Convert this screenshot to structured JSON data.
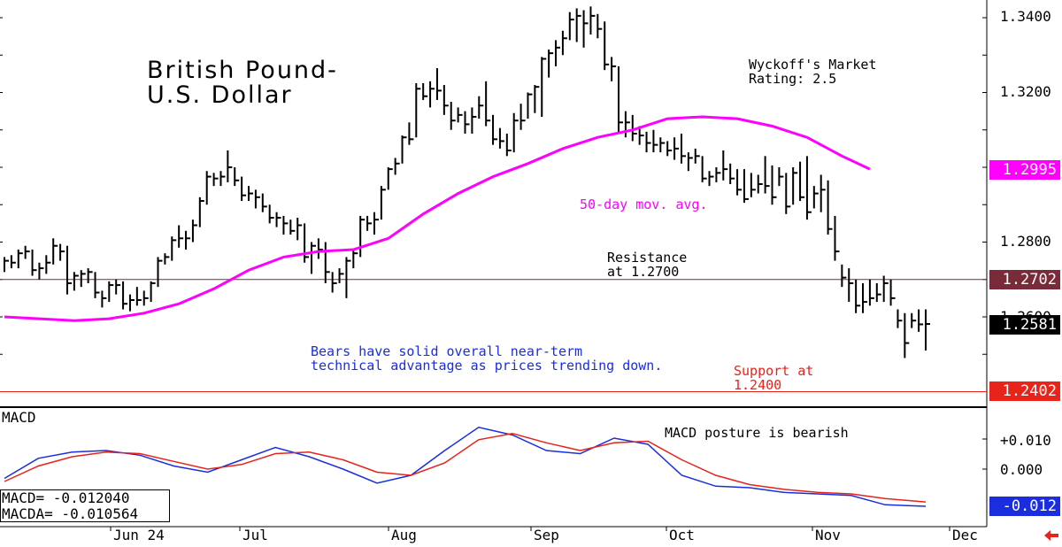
{
  "title": "British Pound-\nU.S. Dollar",
  "rating_text": "Wyckoff's Market\nRating: 2.5",
  "ma_label": "50-day mov. avg.",
  "resistance_label": "Resistance\nat 1.2700",
  "bears_text": "Bears have solid overall near-term\ntechnical advantage as prices trending down.",
  "support_label": "Support at\n1.2400",
  "macd_title": "MACD",
  "macd_posture": "MACD posture is bearish",
  "macd_readout": {
    "macd": "MACD=   -0.012040",
    "macda": "MACDA=  -0.010564"
  },
  "price_ticks": [
    "1.3400",
    "1.3200",
    "1.2800",
    "1.2600"
  ],
  "price_tags": {
    "ma": "1.2995",
    "resistance": "1.2702",
    "last": "1.2581",
    "support": "1.2402"
  },
  "macd_ticks": [
    "+0.010",
    "0.000"
  ],
  "macd_tags": {
    "macd": "-0.012"
  },
  "months": [
    "Jun 24",
    "Jul",
    "Aug",
    "Sep",
    "Oct",
    "Nov",
    "Dec"
  ],
  "colors": {
    "ma": "#ff00ff",
    "resistance": "#7a2b3a",
    "support": "#e8231a",
    "macd": "#1a2ee0",
    "macda": "#e8231a",
    "text_blue": "#1a2ee0",
    "text_red": "#e8231a",
    "text_magenta": "#ff00ff",
    "last_tag": "#000000",
    "ma_tag": "#ff00ff",
    "resistance_tag": "#7a2b3a"
  },
  "chart_data": [
    {
      "type": "bar",
      "subtype": "ohlc",
      "ylim": [
        1.2365,
        1.345
      ],
      "levels": {
        "resistance": 1.27,
        "support": 1.24
      },
      "series": [
        {
          "name": "50-day mov. avg.",
          "dates": [
            "2024-06-03",
            "2024-06-10",
            "2024-06-17",
            "2024-06-24",
            "2024-07-01",
            "2024-07-08",
            "2024-07-15",
            "2024-07-22",
            "2024-07-29",
            "2024-08-05",
            "2024-08-12",
            "2024-08-19",
            "2024-08-26",
            "2024-09-02",
            "2024-09-09",
            "2024-09-16",
            "2024-09-23",
            "2024-09-30",
            "2024-10-07",
            "2024-10-14",
            "2024-10-21",
            "2024-10-28",
            "2024-11-04",
            "2024-11-11",
            "2024-11-18",
            "2024-11-22"
          ],
          "values": [
            1.26,
            1.2595,
            1.259,
            1.2595,
            1.261,
            1.2635,
            1.2675,
            1.2725,
            1.276,
            1.2775,
            1.278,
            1.281,
            1.2875,
            1.293,
            1.2975,
            1.301,
            1.305,
            1.308,
            1.31,
            1.313,
            1.3135,
            1.313,
            1.311,
            1.308,
            1.303,
            1.2995
          ]
        }
      ],
      "ohlc": [
        [
          "2024-06-03",
          1.276,
          1.272,
          1.275
        ],
        [
          "2024-06-04",
          1.2765,
          1.273,
          1.2745
        ],
        [
          "2024-06-05",
          1.278,
          1.273,
          1.277
        ],
        [
          "2024-06-06",
          1.279,
          1.2755,
          1.2775
        ],
        [
          "2024-06-07",
          1.278,
          1.271,
          1.2725
        ],
        [
          "2024-06-10",
          1.2745,
          1.27,
          1.273
        ],
        [
          "2024-06-11",
          1.2765,
          1.2715,
          1.2745
        ],
        [
          "2024-06-12",
          1.281,
          1.274,
          1.279
        ],
        [
          "2024-06-13",
          1.2795,
          1.275,
          1.2775
        ],
        [
          "2024-06-14",
          1.279,
          1.266,
          1.269
        ],
        [
          "2024-06-17",
          1.272,
          1.267,
          1.271
        ],
        [
          "2024-06-18",
          1.2725,
          1.268,
          1.2715
        ],
        [
          "2024-06-19",
          1.273,
          1.269,
          1.272
        ],
        [
          "2024-06-20",
          1.272,
          1.265,
          1.2665
        ],
        [
          "2024-06-21",
          1.267,
          1.2625,
          1.265
        ],
        [
          "2024-06-24",
          1.2695,
          1.264,
          1.2685
        ],
        [
          "2024-06-25",
          1.27,
          1.266,
          1.2685
        ],
        [
          "2024-06-26",
          1.2695,
          1.262,
          1.2635
        ],
        [
          "2024-06-27",
          1.266,
          1.2615,
          1.2645
        ],
        [
          "2024-06-28",
          1.268,
          1.263,
          1.2645
        ],
        [
          "2024-07-01",
          1.267,
          1.263,
          1.265
        ],
        [
          "2024-07-02",
          1.2695,
          1.264,
          1.269
        ],
        [
          "2024-07-03",
          1.276,
          1.268,
          1.275
        ],
        [
          "2024-07-04",
          1.277,
          1.274,
          1.276
        ],
        [
          "2024-07-05",
          1.2815,
          1.275,
          1.2805
        ],
        [
          "2024-07-08",
          1.2845,
          1.2785,
          1.281
        ],
        [
          "2024-07-09",
          1.283,
          1.278,
          1.281
        ],
        [
          "2024-07-10",
          1.286,
          1.28,
          1.2845
        ],
        [
          "2024-07-11",
          1.292,
          1.284,
          1.291
        ],
        [
          "2024-07-12",
          1.299,
          1.29,
          1.2975
        ],
        [
          "2024-07-15",
          1.2985,
          1.295,
          1.297
        ],
        [
          "2024-07-16",
          1.299,
          1.295,
          1.2975
        ],
        [
          "2024-07-17",
          1.3045,
          1.296,
          1.3
        ],
        [
          "2024-07-18",
          1.3,
          1.295,
          1.2965
        ],
        [
          "2024-07-19",
          1.2975,
          1.291,
          1.2925
        ],
        [
          "2024-07-22",
          1.295,
          1.291,
          1.293
        ],
        [
          "2024-07-23",
          1.294,
          1.289,
          1.292
        ],
        [
          "2024-07-24",
          1.293,
          1.288,
          1.2895
        ],
        [
          "2024-07-25",
          1.29,
          1.285,
          1.2865
        ],
        [
          "2024-07-26",
          1.288,
          1.284,
          1.2865
        ],
        [
          "2024-07-29",
          1.287,
          1.282,
          1.285
        ],
        [
          "2024-07-30",
          1.286,
          1.282,
          1.283
        ],
        [
          "2024-07-31",
          1.2865,
          1.2805,
          1.2845
        ],
        [
          "2024-08-01",
          1.285,
          1.2745,
          1.276
        ],
        [
          "2024-08-02",
          1.28,
          1.2715,
          1.279
        ],
        [
          "2024-08-05",
          1.281,
          1.2755,
          1.278
        ],
        [
          "2024-08-06",
          1.28,
          1.269,
          1.272
        ],
        [
          "2024-08-07",
          1.272,
          1.2665,
          1.269
        ],
        [
          "2024-08-08",
          1.273,
          1.269,
          1.2715
        ],
        [
          "2024-08-09",
          1.276,
          1.265,
          1.275
        ],
        [
          "2024-08-12",
          1.278,
          1.273,
          1.277
        ],
        [
          "2024-08-13",
          1.287,
          1.276,
          1.286
        ],
        [
          "2024-08-14",
          1.287,
          1.283,
          1.285
        ],
        [
          "2024-08-15",
          1.288,
          1.282,
          1.286
        ],
        [
          "2024-08-16",
          1.295,
          1.286,
          1.294
        ],
        [
          "2024-08-19",
          1.3,
          1.294,
          1.2995
        ],
        [
          "2024-08-20",
          1.3025,
          1.298,
          1.301
        ],
        [
          "2024-08-21",
          1.3085,
          1.301,
          1.308
        ],
        [
          "2024-08-22",
          1.312,
          1.306,
          1.3075
        ],
        [
          "2024-08-23",
          1.3225,
          1.308,
          1.321
        ],
        [
          "2024-08-26",
          1.3225,
          1.318,
          1.319
        ],
        [
          "2024-08-27",
          1.323,
          1.316,
          1.321
        ],
        [
          "2024-08-28",
          1.3265,
          1.318,
          1.3205
        ],
        [
          "2024-08-29",
          1.322,
          1.314,
          1.3165
        ],
        [
          "2024-08-30",
          1.3175,
          1.31,
          1.3125
        ],
        [
          "2024-09-02",
          1.316,
          1.312,
          1.314
        ],
        [
          "2024-09-03",
          1.315,
          1.309,
          1.3115
        ],
        [
          "2024-09-04",
          1.316,
          1.309,
          1.3135
        ],
        [
          "2024-09-05",
          1.319,
          1.313,
          1.3165
        ],
        [
          "2024-09-06",
          1.323,
          1.311,
          1.3125
        ],
        [
          "2024-09-09",
          1.314,
          1.306,
          1.3075
        ],
        [
          "2024-09-10",
          1.3105,
          1.305,
          1.307
        ],
        [
          "2024-09-11",
          1.309,
          1.303,
          1.3045
        ],
        [
          "2024-09-12",
          1.3145,
          1.304,
          1.3125
        ],
        [
          "2024-09-13",
          1.317,
          1.31,
          1.3125
        ],
        [
          "2024-09-16",
          1.32,
          1.313,
          1.3195
        ],
        [
          "2024-09-17",
          1.322,
          1.3145,
          1.3215
        ],
        [
          "2024-09-18",
          1.3295,
          1.3135,
          1.329
        ],
        [
          "2024-09-19",
          1.3315,
          1.324,
          1.3305
        ],
        [
          "2024-09-20",
          1.334,
          1.327,
          1.332
        ],
        [
          "2024-09-23",
          1.3365,
          1.33,
          1.3345
        ],
        [
          "2024-09-24",
          1.3415,
          1.334,
          1.3395
        ],
        [
          "2024-09-25",
          1.3425,
          1.3335,
          1.3405
        ],
        [
          "2024-09-26",
          1.342,
          1.332,
          1.3385
        ],
        [
          "2024-09-27",
          1.343,
          1.3355,
          1.3405
        ],
        [
          "2024-09-30",
          1.341,
          1.3345,
          1.337
        ],
        [
          "2024-10-01",
          1.339,
          1.326,
          1.3275
        ],
        [
          "2024-10-02",
          1.3295,
          1.323,
          1.327
        ],
        [
          "2024-10-03",
          1.327,
          1.3095,
          1.312
        ],
        [
          "2024-10-04",
          1.315,
          1.308,
          1.312
        ],
        [
          "2024-10-07",
          1.314,
          1.307,
          1.309
        ],
        [
          "2024-10-08",
          1.311,
          1.306,
          1.3085
        ],
        [
          "2024-10-09",
          1.3095,
          1.304,
          1.3065
        ],
        [
          "2024-10-10",
          1.31,
          1.304,
          1.306
        ],
        [
          "2024-10-11",
          1.308,
          1.304,
          1.3065
        ],
        [
          "2024-10-14",
          1.307,
          1.303,
          1.3045
        ],
        [
          "2024-10-15",
          1.308,
          1.302,
          1.305
        ],
        [
          "2024-10-16",
          1.309,
          1.301,
          1.303
        ],
        [
          "2024-10-17",
          1.304,
          1.299,
          1.3025
        ],
        [
          "2024-10-18",
          1.305,
          1.301,
          1.303
        ],
        [
          "2024-10-21",
          1.303,
          1.296,
          1.297
        ],
        [
          "2024-10-22",
          1.299,
          1.295,
          1.2975
        ],
        [
          "2024-10-23",
          1.3,
          1.296,
          1.2985
        ],
        [
          "2024-10-24",
          1.3045,
          1.2965,
          1.2995
        ],
        [
          "2024-10-25",
          1.301,
          1.2955,
          1.297
        ],
        [
          "2024-10-28",
          1.2995,
          1.2925,
          1.294
        ],
        [
          "2024-10-29",
          1.2995,
          1.2905,
          1.2915
        ],
        [
          "2024-10-30",
          1.2985,
          1.292,
          1.294
        ],
        [
          "2024-10-31",
          1.298,
          1.293,
          1.2955
        ],
        [
          "2024-11-01",
          1.303,
          1.293,
          1.295
        ],
        [
          "2024-11-04",
          1.3005,
          1.29,
          1.292
        ],
        [
          "2024-11-05",
          1.3,
          1.295,
          1.2975
        ],
        [
          "2024-11-06",
          1.2985,
          1.2875,
          1.2895
        ],
        [
          "2024-11-07",
          1.3,
          1.29,
          1.2985
        ],
        [
          "2024-11-08",
          1.3015,
          1.291,
          1.292
        ],
        [
          "2024-11-11",
          1.303,
          1.286,
          1.288
        ],
        [
          "2024-11-12",
          1.295,
          1.289,
          1.293
        ],
        [
          "2024-11-13",
          1.298,
          1.288,
          1.294
        ],
        [
          "2024-11-14",
          1.2965,
          1.282,
          1.2835
        ],
        [
          "2024-11-15",
          1.287,
          1.275,
          1.2775
        ],
        [
          "2024-11-18",
          1.274,
          1.268,
          1.2705
        ],
        [
          "2024-11-19",
          1.273,
          1.264,
          1.269
        ],
        [
          "2024-11-20",
          1.27,
          1.261,
          1.263
        ],
        [
          "2024-11-21",
          1.269,
          1.261,
          1.264
        ],
        [
          "2024-11-22",
          1.27,
          1.263,
          1.265
        ],
        [
          "2024-11-25",
          1.269,
          1.264,
          1.266
        ],
        [
          "2024-11-26",
          1.271,
          1.264,
          1.269
        ],
        [
          "2024-11-27",
          1.27,
          1.263,
          1.265
        ],
        [
          "2024-11-28",
          1.262,
          1.257,
          1.259
        ],
        [
          "2024-11-29",
          1.261,
          1.249,
          1.253
        ],
        [
          "2024-12-02",
          1.261,
          1.257,
          1.259
        ],
        [
          "2024-12-03",
          1.262,
          1.256,
          1.258
        ],
        [
          "2024-12-04",
          1.262,
          1.251,
          1.2581
        ]
      ]
    },
    {
      "type": "line",
      "title": "MACD",
      "ylim": [
        -0.016,
        0.016
      ],
      "series": [
        {
          "name": "MACD",
          "x": [
            0,
            5,
            10,
            15,
            20,
            25,
            30,
            35,
            40,
            45,
            50,
            55,
            60,
            65,
            70,
            75,
            80,
            85,
            90,
            95,
            100,
            105,
            110,
            115,
            120,
            125,
            130,
            136
          ],
          "values": [
            -0.003,
            0.0035,
            0.0055,
            0.006,
            0.0045,
            0.001,
            -0.001,
            0.003,
            0.007,
            0.004,
            0.0,
            -0.0045,
            -0.002,
            0.006,
            0.0135,
            0.011,
            0.006,
            0.005,
            0.01,
            0.008,
            -0.002,
            -0.0055,
            -0.006,
            -0.0075,
            -0.008,
            -0.0085,
            -0.0115,
            -0.012
          ]
        },
        {
          "name": "MACDA",
          "x": [
            0,
            5,
            10,
            15,
            20,
            25,
            30,
            35,
            40,
            45,
            50,
            55,
            60,
            65,
            70,
            75,
            80,
            85,
            90,
            95,
            100,
            105,
            110,
            115,
            120,
            125,
            130,
            136
          ],
          "values": [
            -0.004,
            0.001,
            0.004,
            0.0055,
            0.005,
            0.0025,
            0.0,
            0.0015,
            0.005,
            0.0055,
            0.003,
            -0.001,
            -0.002,
            0.002,
            0.0095,
            0.0115,
            0.0085,
            0.006,
            0.0085,
            0.009,
            0.003,
            -0.002,
            -0.005,
            -0.0065,
            -0.0075,
            -0.008,
            -0.0095,
            -0.0106
          ]
        }
      ]
    }
  ]
}
